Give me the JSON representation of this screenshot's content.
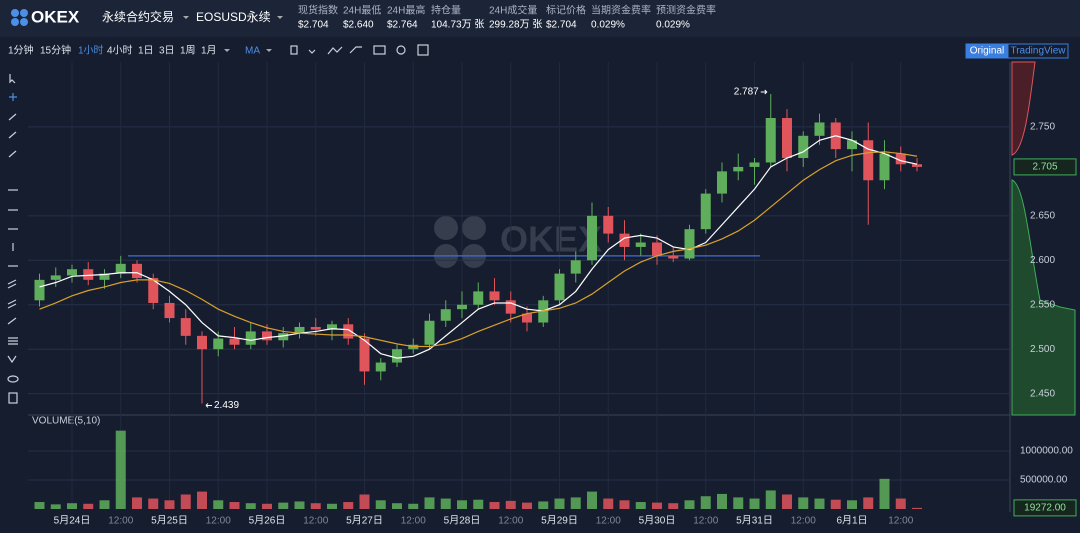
{
  "header": {
    "logo": "OKEX",
    "product": "永续合约交易",
    "instrument": "EOSUSD永续",
    "stats": [
      {
        "label": "现货指数",
        "value": "$2.704"
      },
      {
        "label": "24H最低",
        "value": "$2.640"
      },
      {
        "label": "24H最高",
        "value": "$2.764"
      },
      {
        "label": "持仓量",
        "value": "104.73万 张"
      },
      {
        "label": "24H成交量",
        "value": "299.28万 张"
      },
      {
        "label": "标记价格",
        "value": "$2.704"
      },
      {
        "label": "当期资金费率",
        "value": "0.029%"
      },
      {
        "label": "预测资金费率",
        "value": "0.029%"
      }
    ]
  },
  "toolbar": {
    "intervals": [
      "1分钟",
      "15分钟",
      "1小时",
      "4小时",
      "1日",
      "3日",
      "1周",
      "1月"
    ],
    "active_interval": 2,
    "indicator": "MA",
    "views": [
      "Original",
      "TradingView"
    ],
    "active_view": 0
  },
  "chart_data": {
    "type": "candlestick",
    "up_color": "#5fae5c",
    "down_color": "#e0545c",
    "ma_colors": [
      "#ffffff",
      "#d9a12b"
    ],
    "categories": [
      null,
      null,
      "5月24日",
      null,
      null,
      "12:00",
      null,
      null,
      "5月25日",
      null,
      null,
      "12:00",
      null,
      null,
      "5月26日",
      null,
      null,
      "12:00",
      null,
      null,
      "5月27日",
      null,
      null,
      "12:00",
      null,
      null,
      "5月28日",
      null,
      null,
      "12:00",
      null,
      null,
      "5月29日",
      null,
      null,
      "12:00",
      null,
      null,
      "5月30日",
      null,
      null,
      "12:00",
      null,
      null,
      "5月31日",
      null,
      null,
      "12:00",
      null,
      null,
      "6月1日",
      null,
      null,
      "12:00",
      null
    ],
    "candles": [
      [
        2.555,
        2.585,
        2.548,
        2.578
      ],
      [
        2.578,
        2.592,
        2.57,
        2.583
      ],
      [
        2.583,
        2.595,
        2.575,
        2.59
      ],
      [
        2.59,
        2.598,
        2.572,
        2.578
      ],
      [
        2.578,
        2.59,
        2.568,
        2.585
      ],
      [
        2.585,
        2.605,
        2.58,
        2.596
      ],
      [
        2.596,
        2.6,
        2.575,
        2.58
      ],
      [
        2.58,
        2.585,
        2.545,
        2.552
      ],
      [
        2.552,
        2.56,
        2.53,
        2.535
      ],
      [
        2.535,
        2.545,
        2.505,
        2.515
      ],
      [
        2.515,
        2.52,
        2.439,
        2.5
      ],
      [
        2.5,
        2.52,
        2.492,
        2.512
      ],
      [
        2.512,
        2.525,
        2.5,
        2.505
      ],
      [
        2.505,
        2.53,
        2.5,
        2.52
      ],
      [
        2.52,
        2.528,
        2.505,
        2.51
      ],
      [
        2.51,
        2.525,
        2.502,
        2.518
      ],
      [
        2.518,
        2.53,
        2.512,
        2.525
      ],
      [
        2.525,
        2.535,
        2.515,
        2.522
      ],
      [
        2.522,
        2.532,
        2.51,
        2.528
      ],
      [
        2.528,
        2.535,
        2.505,
        2.512
      ],
      [
        2.512,
        2.518,
        2.46,
        2.475
      ],
      [
        2.475,
        2.49,
        2.465,
        2.485
      ],
      [
        2.485,
        2.505,
        2.48,
        2.5
      ],
      [
        2.5,
        2.512,
        2.495,
        2.505
      ],
      [
        2.505,
        2.54,
        2.5,
        2.532
      ],
      [
        2.532,
        2.555,
        2.525,
        2.545
      ],
      [
        2.545,
        2.565,
        2.535,
        2.55
      ],
      [
        2.55,
        2.575,
        2.545,
        2.565
      ],
      [
        2.565,
        2.58,
        2.55,
        2.555
      ],
      [
        2.555,
        2.565,
        2.53,
        2.54
      ],
      [
        2.54,
        2.548,
        2.52,
        2.53
      ],
      [
        2.53,
        2.56,
        2.525,
        2.555
      ],
      [
        2.555,
        2.59,
        2.55,
        2.585
      ],
      [
        2.585,
        2.61,
        2.575,
        2.6
      ],
      [
        2.6,
        2.665,
        2.595,
        2.65
      ],
      [
        2.65,
        2.66,
        2.62,
        2.63
      ],
      [
        2.63,
        2.645,
        2.6,
        2.615
      ],
      [
        2.615,
        2.63,
        2.605,
        2.62
      ],
      [
        2.62,
        2.628,
        2.595,
        2.605
      ],
      [
        2.605,
        2.615,
        2.598,
        2.602
      ],
      [
        2.602,
        2.64,
        2.6,
        2.635
      ],
      [
        2.635,
        2.68,
        2.63,
        2.675
      ],
      [
        2.675,
        2.71,
        2.665,
        2.7
      ],
      [
        2.7,
        2.72,
        2.69,
        2.705
      ],
      [
        2.705,
        2.715,
        2.685,
        2.71
      ],
      [
        2.71,
        2.787,
        2.705,
        2.76
      ],
      [
        2.76,
        2.77,
        2.7,
        2.715
      ],
      [
        2.715,
        2.745,
        2.705,
        2.74
      ],
      [
        2.74,
        2.765,
        2.73,
        2.755
      ],
      [
        2.755,
        2.76,
        2.715,
        2.725
      ],
      [
        2.725,
        2.745,
        2.7,
        2.735
      ],
      [
        2.735,
        2.755,
        2.64,
        2.69
      ],
      [
        2.69,
        2.735,
        2.68,
        2.72
      ],
      [
        2.72,
        2.728,
        2.7,
        2.708
      ],
      [
        2.708,
        2.715,
        2.7,
        2.705
      ]
    ],
    "ma_short": [
      2.57,
      2.575,
      2.582,
      2.583,
      2.584,
      2.586,
      2.586,
      2.578,
      2.565,
      2.55,
      2.53,
      2.515,
      2.513,
      2.51,
      2.513,
      2.515,
      2.518,
      2.52,
      2.523,
      2.522,
      2.51,
      2.495,
      2.49,
      2.492,
      2.5,
      2.515,
      2.53,
      2.545,
      2.552,
      2.552,
      2.545,
      2.543,
      2.55,
      2.565,
      2.59,
      2.612,
      2.625,
      2.628,
      2.625,
      2.615,
      2.612,
      2.62,
      2.64,
      2.66,
      2.68,
      2.705,
      2.715,
      2.722,
      2.735,
      2.74,
      2.735,
      2.725,
      2.72,
      2.712,
      2.708
    ],
    "ma_long": [
      2.545,
      2.552,
      2.56,
      2.566,
      2.57,
      2.575,
      2.578,
      2.578,
      2.574,
      2.566,
      2.556,
      2.545,
      2.537,
      2.53,
      2.524,
      2.52,
      2.518,
      2.517,
      2.516,
      2.516,
      2.514,
      2.51,
      2.506,
      2.503,
      2.503,
      2.506,
      2.512,
      2.52,
      2.527,
      2.534,
      2.54,
      2.543,
      2.546,
      2.552,
      2.562,
      2.575,
      2.588,
      2.598,
      2.605,
      2.61,
      2.613,
      2.617,
      2.624,
      2.633,
      2.645,
      2.66,
      2.675,
      2.69,
      2.702,
      2.712,
      2.718,
      2.721,
      2.722,
      2.72,
      2.717
    ],
    "horizontal_line": {
      "value": 2.605,
      "color": "#3f6fd8"
    },
    "ylim": [
      2.426,
      2.823
    ],
    "yticks": [
      {
        "value": 2.45,
        "label": "2.450"
      },
      {
        "value": 2.5,
        "label": "2.500"
      },
      {
        "value": 2.55,
        "label": "2.550"
      },
      {
        "value": 2.6,
        "label": "2.600"
      },
      {
        "value": 2.65,
        "label": "2.650"
      },
      {
        "value": 2.75,
        "label": "2.750"
      }
    ],
    "last_price": 2.705,
    "high_marker": 45,
    "low_marker": 10,
    "volume_title": "VOLUME(5,10)",
    "volumes": [
      120000,
      80000,
      100000,
      90000,
      150000,
      1350000,
      200000,
      180000,
      150000,
      250000,
      300000,
      150000,
      120000,
      100000,
      90000,
      110000,
      130000,
      100000,
      90000,
      120000,
      250000,
      150000,
      100000,
      90000,
      200000,
      180000,
      150000,
      160000,
      120000,
      140000,
      110000,
      130000,
      180000,
      200000,
      300000,
      180000,
      150000,
      120000,
      110000,
      100000,
      150000,
      220000,
      260000,
      200000,
      180000,
      320000,
      250000,
      200000,
      180000,
      160000,
      150000,
      200000,
      520000,
      180000,
      19272
    ],
    "vlim": [
      0,
      1620000
    ],
    "vticks": [
      {
        "value": 500000,
        "label": "500000.00"
      },
      {
        "value": 1000000,
        "label": "1000000.00"
      }
    ],
    "last_volume_label": "19272.00",
    "grid": true
  }
}
